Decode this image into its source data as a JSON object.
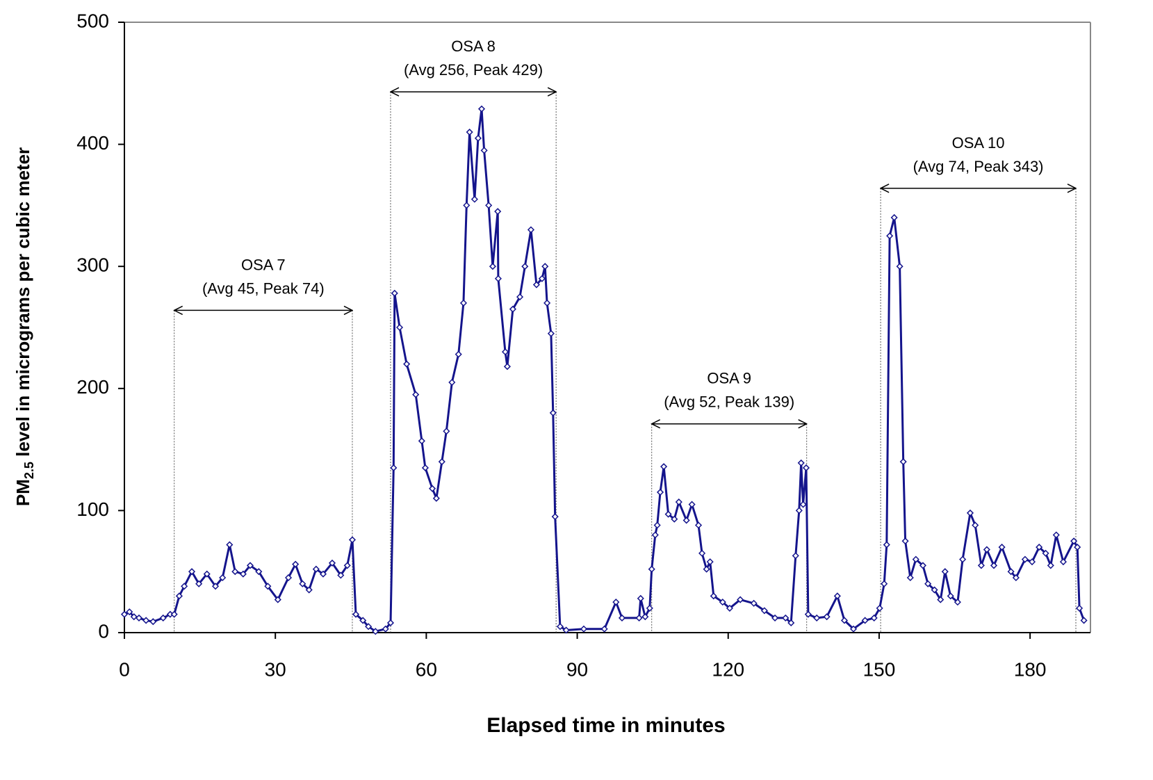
{
  "chart_data": {
    "type": "line",
    "y_label": {
      "prefix": "PM",
      "subscript": "2.5",
      "rest": " level in micrograms per cubic meter"
    },
    "x_label": "Elapsed time in minutes",
    "color": "#14148c",
    "x": [
      0,
      1.0,
      1.9,
      2.9,
      4.3,
      5.7,
      7.7,
      9.1,
      9.9,
      10.9,
      11.9,
      13.4,
      14.8,
      16.4,
      18.1,
      19.5,
      20.9,
      22.0,
      23.6,
      25.0,
      26.7,
      28.5,
      30.5,
      32.6,
      34.0,
      35.4,
      36.7,
      38.1,
      39.5,
      41.3,
      43.0,
      44.3,
      45.3,
      46.0,
      47.4,
      48.5,
      49.9,
      51.9,
      52.9,
      53.5,
      53.7,
      54.7,
      56.1,
      57.9,
      59.1,
      59.8,
      61.2,
      62.0,
      63.1,
      64.0,
      65.1,
      66.4,
      67.4,
      68.0,
      68.6,
      69.6,
      70.3,
      71.0,
      71.5,
      72.4,
      73.2,
      74.2,
      74.3,
      75.7,
      76.1,
      77.2,
      78.6,
      79.6,
      80.8,
      81.9,
      83.0,
      83.6,
      84.0,
      84.8,
      85.2,
      85.6,
      86.6,
      87.8,
      91.3,
      95.4,
      97.7,
      98.9,
      102.3,
      102.6,
      103.5,
      104.4,
      104.8,
      105.5,
      105.9,
      106.5,
      107.2,
      108.1,
      109.3,
      110.2,
      111.7,
      112.8,
      114.1,
      114.8,
      115.7,
      116.4,
      117.1,
      118.9,
      120.3,
      122.4,
      125.1,
      127.2,
      129.3,
      131.4,
      132.5,
      133.4,
      134.1,
      134.5,
      134.9,
      135.5,
      135.9,
      137.6,
      139.6,
      141.7,
      143.1,
      144.9,
      147.2,
      149.0,
      150.1,
      151.0,
      151.5,
      152.1,
      153.0,
      154.1,
      154.8,
      155.2,
      156.2,
      157.3,
      158.7,
      159.7,
      161.0,
      162.2,
      163.1,
      164.2,
      165.6,
      166.6,
      168.1,
      169.1,
      170.3,
      171.4,
      172.8,
      174.4,
      176.2,
      177.2,
      179.0,
      180.4,
      181.8,
      183.1,
      184.1,
      185.2,
      186.6,
      188.7,
      189.4,
      189.8,
      190.7
    ],
    "values": [
      15,
      17,
      13,
      12,
      10,
      9,
      12,
      15,
      15,
      30,
      38,
      50,
      40,
      48,
      38,
      45,
      72,
      50,
      48,
      55,
      50,
      38,
      27,
      45,
      56,
      40,
      35,
      52,
      48,
      57,
      47,
      55,
      76,
      15,
      10,
      5,
      1,
      3,
      8,
      135,
      278,
      250,
      220,
      195,
      157,
      135,
      118,
      110,
      140,
      165,
      205,
      228,
      270,
      350,
      410,
      355,
      405,
      429,
      395,
      350,
      300,
      345,
      290,
      230,
      218,
      265,
      275,
      300,
      330,
      285,
      290,
      300,
      270,
      245,
      180,
      95,
      5,
      2,
      3,
      3,
      25,
      12,
      12,
      28,
      13,
      20,
      52,
      80,
      88,
      115,
      136,
      97,
      93,
      107,
      92,
      105,
      88,
      65,
      52,
      58,
      30,
      25,
      20,
      27,
      24,
      18,
      12,
      12,
      8,
      63,
      100,
      139,
      105,
      135,
      15,
      12,
      13,
      30,
      10,
      3,
      10,
      12,
      20,
      40,
      72,
      325,
      340,
      300,
      140,
      75,
      45,
      60,
      55,
      40,
      35,
      27,
      50,
      30,
      25,
      60,
      98,
      88,
      55,
      68,
      55,
      70,
      50,
      45,
      60,
      58,
      70,
      65,
      55,
      80,
      58,
      75,
      70,
      20,
      10
    ],
    "xlim": [
      0,
      192
    ],
    "xticks": [
      0,
      30,
      60,
      90,
      120,
      150,
      180
    ],
    "ylim": [
      0,
      500
    ],
    "yticks": [
      0,
      100,
      200,
      300,
      400,
      500
    ],
    "annotations": [
      {
        "title": "OSA 7",
        "detail": "(Avg 45, Peak 74)",
        "start": 9.9,
        "end": 45.3,
        "level": 264
      },
      {
        "title": "OSA 8",
        "detail": "(Avg 256, Peak 429)",
        "start": 52.9,
        "end": 85.8,
        "level": 443
      },
      {
        "title": "OSA 9",
        "detail": "(Avg 52, Peak 139)",
        "start": 104.8,
        "end": 135.6,
        "level": 171
      },
      {
        "title": "OSA 10",
        "detail": "(Avg 74, Peak 343)",
        "start": 150.3,
        "end": 189.1,
        "level": 364
      }
    ]
  }
}
